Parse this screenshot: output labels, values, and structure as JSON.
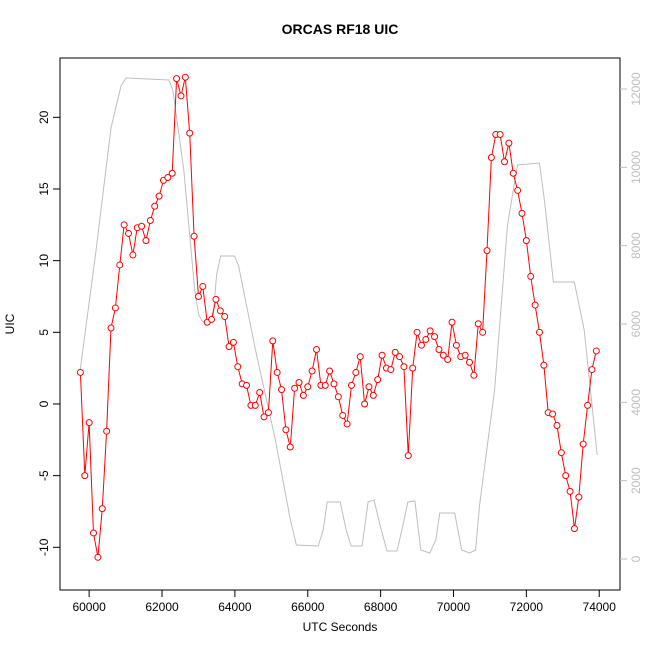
{
  "chart_data": {
    "type": "line",
    "title": "ORCAS RF18 UIC",
    "xlabel": "UTC Seconds",
    "ylabel": "UIC",
    "xlim": [
      59200,
      74570
    ],
    "ylim": [
      -12.98,
      24.14
    ],
    "y2lim": [
      -791,
      12791
    ],
    "xticks": [
      60000,
      62000,
      64000,
      66000,
      68000,
      70000,
      72000,
      74000
    ],
    "yticks": [
      -10,
      -5,
      0,
      5,
      10,
      15,
      20
    ],
    "y2ticks": [
      0,
      2000,
      4000,
      6000,
      8000,
      10000,
      12000
    ],
    "series": [
      {
        "color": "#ff0000",
        "markers": true,
        "x": [
          59760,
          59880,
          60000,
          60120,
          60240,
          60360,
          60480,
          60600,
          60720,
          60840,
          60960,
          61080,
          61200,
          61320,
          61440,
          61560,
          61680,
          61800,
          61920,
          62040,
          62160,
          62280,
          62400,
          62520,
          62640,
          62760,
          62880,
          63000,
          63120,
          63240,
          63360,
          63480,
          63600,
          63720,
          63840,
          63960,
          64080,
          64200,
          64320,
          64440,
          64560,
          64680,
          64800,
          64920,
          65040,
          65160,
          65280,
          65400,
          65520,
          65640,
          65760,
          65880,
          66000,
          66120,
          66240,
          66360,
          66480,
          66600,
          66720,
          66840,
          66960,
          67080,
          67200,
          67320,
          67440,
          67560,
          67680,
          67800,
          67920,
          68040,
          68160,
          68280,
          68400,
          68520,
          68640,
          68760,
          68880,
          69000,
          69120,
          69240,
          69360,
          69480,
          69600,
          69720,
          69840,
          69960,
          70080,
          70200,
          70320,
          70440,
          70560,
          70680,
          70800,
          70920,
          71040,
          71160,
          71280,
          71400,
          71520,
          71640,
          71760,
          71880,
          72000,
          72120,
          72240,
          72360,
          72480,
          72600,
          72720,
          72840,
          72960,
          73080,
          73200,
          73320,
          73440,
          73560,
          73680,
          73800,
          73920
        ],
        "values": [
          2.2,
          -5.0,
          -1.3,
          -9.0,
          -10.7,
          -7.3,
          -1.9,
          5.3,
          6.7,
          9.7,
          12.5,
          11.9,
          10.4,
          12.3,
          12.4,
          11.4,
          12.8,
          13.8,
          14.5,
          15.6,
          15.8,
          16.1,
          22.7,
          21.5,
          22.8,
          18.9,
          11.7,
          7.5,
          8.2,
          5.7,
          5.9,
          7.3,
          6.5,
          6.1,
          4.0,
          4.3,
          2.6,
          1.4,
          1.3,
          -0.1,
          -0.1,
          0.8,
          -0.9,
          -0.6,
          4.4,
          2.2,
          1.0,
          -1.8,
          -3.0,
          1.1,
          1.5,
          0.6,
          1.2,
          2.3,
          3.8,
          1.3,
          1.3,
          2.3,
          1.4,
          0.5,
          -0.8,
          -1.4,
          1.3,
          2.2,
          3.3,
          0.0,
          1.2,
          0.6,
          1.7,
          3.4,
          2.5,
          2.4,
          3.6,
          3.3,
          2.6,
          -3.6,
          2.5,
          5.0,
          4.1,
          4.5,
          5.1,
          4.7,
          3.8,
          3.4,
          3.1,
          5.7,
          4.1,
          3.3,
          3.4,
          2.9,
          2.0,
          5.6,
          5.0,
          10.7,
          17.2,
          18.8,
          18.8,
          16.9,
          18.2,
          16.1,
          14.9,
          13.3,
          11.4,
          8.9,
          6.9,
          5.0,
          2.7,
          -0.6,
          -0.7,
          -1.5,
          -3.4,
          -5.0,
          -6.1,
          -8.7,
          -6.5,
          -2.8,
          -0.1,
          2.4,
          3.7
        ]
      },
      {
        "color": "#bebebe",
        "axis": "y2",
        "markers": false,
        "x": [
          59754,
          60191,
          60601,
          60875,
          61012,
          62187,
          62297,
          62597,
          62898,
          63007,
          63117,
          63390,
          63499,
          63609,
          63992,
          64101,
          64566,
          65113,
          65523,
          65687,
          66288,
          66425,
          66534,
          66890,
          67054,
          67190,
          67491,
          67655,
          67819,
          67983,
          68175,
          68448,
          68585,
          68749,
          68940,
          69104,
          69350,
          69514,
          69624,
          70034,
          70225,
          70444,
          70608,
          70717,
          71127,
          71483,
          71756,
          72358,
          72495,
          72741,
          73315,
          73588,
          73943
        ],
        "values": [
          4825,
          7889,
          11003,
          12075,
          12280,
          12229,
          11974,
          9931,
          6868,
          6229,
          6051,
          6051,
          7250,
          7736,
          7736,
          7480,
          5336,
          3038,
          996,
          357,
          332,
          740,
          1455,
          1455,
          740,
          332,
          332,
          1455,
          1506,
          868,
          204,
          204,
          740,
          1455,
          1481,
          230,
          153,
          485,
          1174,
          1174,
          230,
          153,
          230,
          1379,
          4314,
          8527,
          10059,
          10110,
          9165,
          7072,
          7072,
          5846,
          2655
        ]
      }
    ]
  }
}
